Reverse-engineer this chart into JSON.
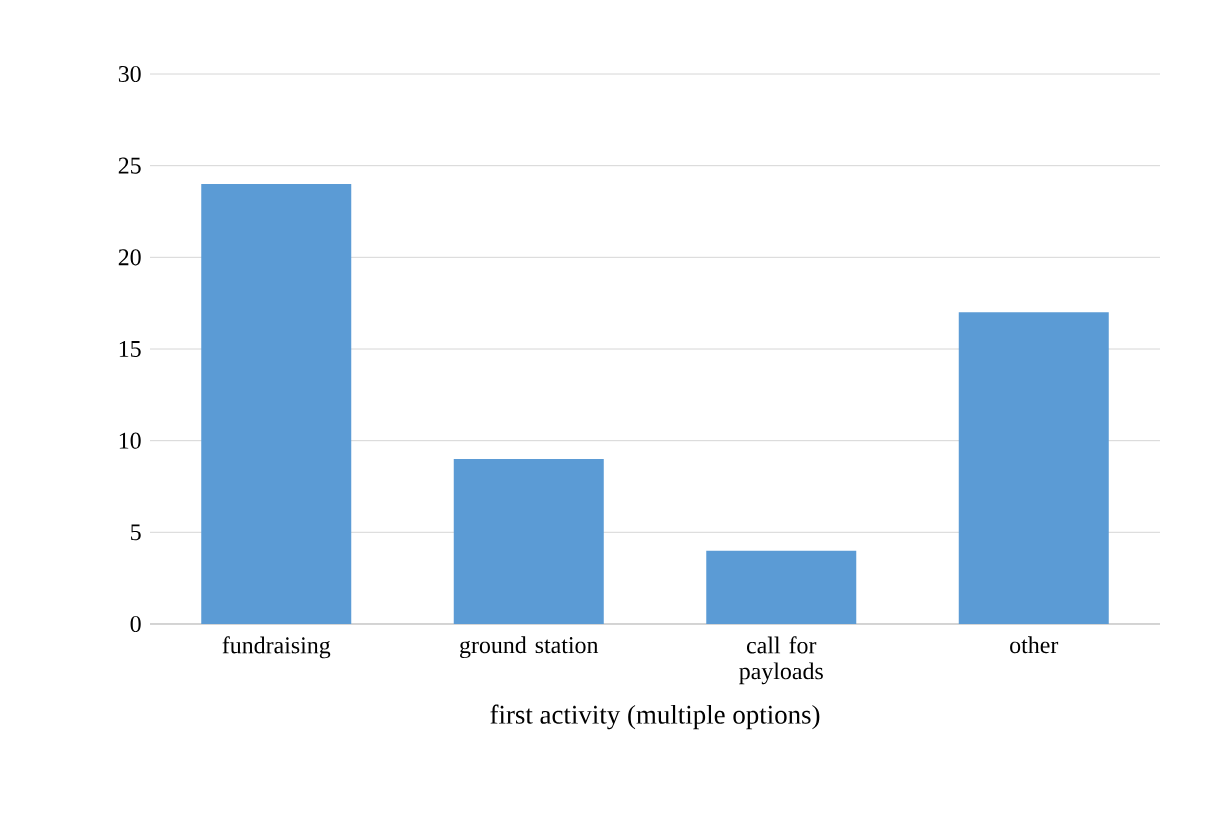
{
  "chart_data": {
    "type": "bar",
    "xlabel": "first activity (multiple  options)",
    "categories": [
      "fundraising",
      "ground station",
      "call for payloads",
      "other"
    ],
    "values": [
      24,
      9,
      4,
      17
    ],
    "color": "#5b9bd5",
    "ylim": [
      0,
      30
    ],
    "yticks": [
      0,
      5,
      10,
      15,
      20,
      25,
      30
    ],
    "grid": "y"
  }
}
